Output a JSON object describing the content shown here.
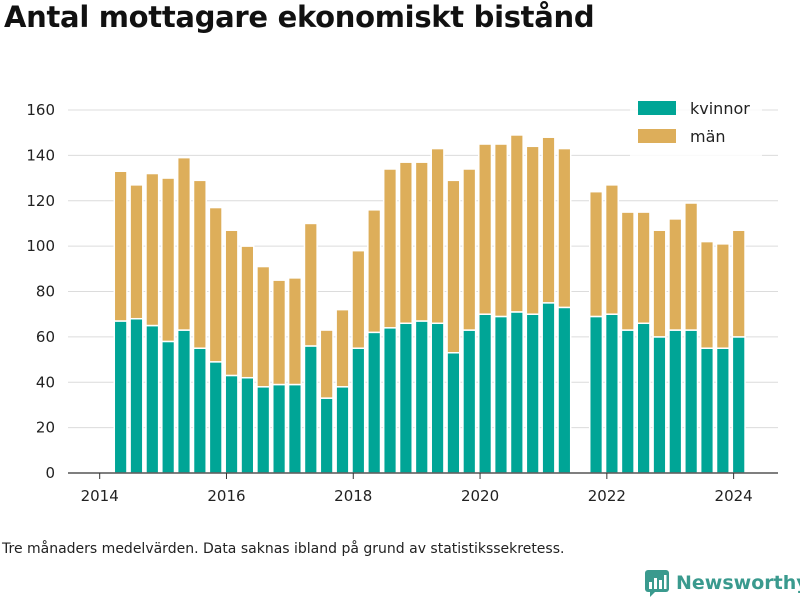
{
  "title": "Antal mottagare ekonomiskt bistånd",
  "footnote": "Tre månaders medelvärden. Data saknas ibland på grund av statistikssekretess.",
  "brand": "Newsworthy",
  "colors": {
    "kvinnor": "#00a596",
    "man": "#ddae5a",
    "grid": "#dcdcdc",
    "axis": "#333333"
  },
  "chart_data": {
    "type": "bar",
    "stacked": true,
    "xlim": [
      2013.5,
      2024.7
    ],
    "ylim": [
      0,
      160
    ],
    "xticks": [
      2014,
      2016,
      2018,
      2020,
      2022,
      2024
    ],
    "xtick_labels": [
      "2014",
      "2016",
      "2018",
      "2020",
      "2022",
      "2024"
    ],
    "yticks": [
      0,
      20,
      40,
      60,
      80,
      100,
      120,
      140,
      160
    ],
    "ytick_labels": [
      "0",
      "20",
      "40",
      "60",
      "80",
      "100",
      "120",
      "140",
      "160"
    ],
    "grid": true,
    "legend_position": "top-right",
    "x": [
      2014.33,
      2014.58,
      2014.83,
      2015.08,
      2015.33,
      2015.58,
      2015.83,
      2016.08,
      2016.33,
      2016.58,
      2016.83,
      2017.08,
      2017.33,
      2017.58,
      2017.83,
      2018.08,
      2018.33,
      2018.58,
      2018.83,
      2019.08,
      2019.33,
      2019.58,
      2019.83,
      2020.08,
      2020.33,
      2020.58,
      2020.83,
      2021.08,
      2021.33,
      2021.83,
      2022.08,
      2022.33,
      2022.58,
      2022.83,
      2023.08,
      2023.33,
      2023.58,
      2023.83,
      2024.08
    ],
    "series": [
      {
        "name": "kvinnor",
        "color": "#00a596",
        "values": [
          67,
          68,
          65,
          58,
          63,
          55,
          49,
          43,
          42,
          38,
          39,
          39,
          56,
          33,
          38,
          55,
          62,
          64,
          66,
          67,
          66,
          53,
          63,
          70,
          69,
          71,
          70,
          75,
          73,
          69,
          70,
          63,
          66,
          60,
          63,
          63,
          55,
          55,
          60
        ]
      },
      {
        "name": "män",
        "color": "#ddae5a",
        "values": [
          66,
          59,
          67,
          72,
          76,
          74,
          68,
          64,
          58,
          53,
          46,
          47,
          54,
          30,
          34,
          43,
          54,
          70,
          71,
          70,
          77,
          76,
          71,
          75,
          76,
          78,
          74,
          73,
          70,
          55,
          57,
          52,
          49,
          47,
          49,
          56,
          47,
          46,
          47
        ]
      }
    ]
  }
}
